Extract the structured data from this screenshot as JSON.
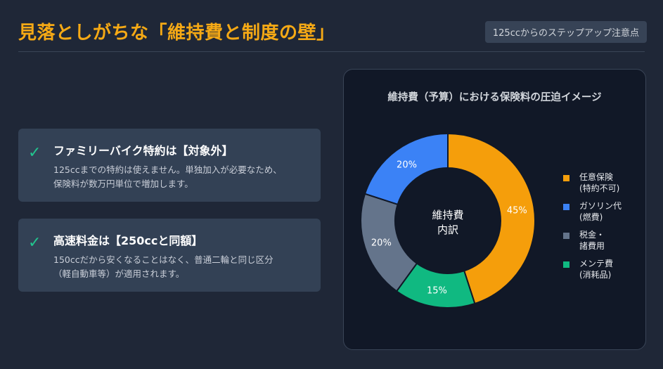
{
  "header": {
    "title": "見落としがちな「維持費と制度の壁」",
    "tag": "125ccからのステップアップ注意点"
  },
  "cards": [
    {
      "check_icon": "✓",
      "title": "ファミリーバイク特約は【対象外】",
      "body_lines": [
        "125ccまでの特約は使えません。単独加入が必要なため、",
        "保険料が数万円単位で増加します。"
      ]
    },
    {
      "check_icon": "✓",
      "title": "高速料金は【250ccと同額】",
      "body_lines": [
        "150ccだから安くなることはなく、普通二輪と同じ区分",
        "（軽自動車等）が適用されます。"
      ]
    }
  ],
  "chart_data": {
    "type": "pie",
    "title": "維持費（予算）における保険料の圧迫イメージ",
    "center_label": [
      "維持費",
      "内訳"
    ],
    "slices": [
      {
        "label_lines": [
          "任意保険",
          "(特約不可)"
        ],
        "value": 45,
        "value_label": "45%",
        "color": "#f59e0b"
      },
      {
        "label_lines": [
          "メンテ費",
          "(消耗品)"
        ],
        "value": 15,
        "value_label": "15%",
        "color": "#10b981"
      },
      {
        "label_lines": [
          "税金・",
          "諸費用"
        ],
        "value": 20,
        "value_label": "20%",
        "color": "#64748b"
      },
      {
        "label_lines": [
          "ガソリン代",
          "(燃費)"
        ],
        "value": 20,
        "value_label": "20%",
        "color": "#3b82f6"
      }
    ],
    "legend_order": [
      0,
      3,
      2,
      1
    ],
    "legend_position": "right"
  }
}
